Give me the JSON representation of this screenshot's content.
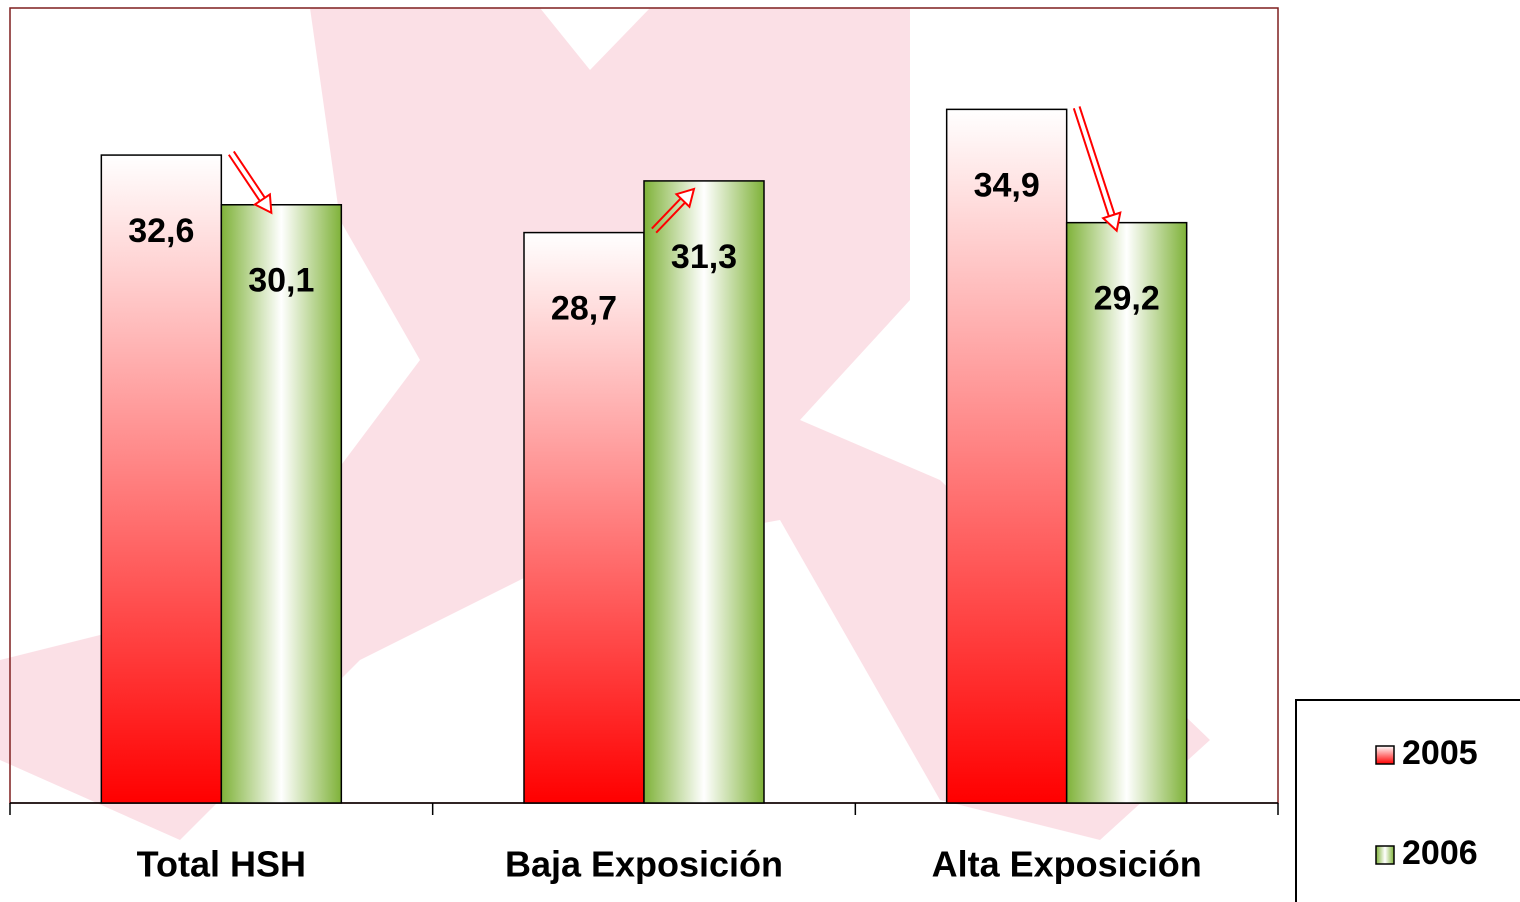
{
  "chart_data": {
    "type": "bar",
    "categories": [
      "Total HSH",
      "Baja Exposición",
      "Alta Exposición"
    ],
    "series": [
      {
        "name": "2005",
        "color": "#ff0000",
        "values": [
          32.6,
          28.7,
          34.9
        ],
        "value_labels": [
          "32,6",
          "28,7",
          "34,9"
        ]
      },
      {
        "name": "2006",
        "color": "#7fb239",
        "values": [
          30.1,
          31.3,
          29.2
        ],
        "value_labels": [
          "30,1",
          "31,3",
          "29,2"
        ]
      }
    ],
    "ylim": [
      0,
      40
    ]
  }
}
